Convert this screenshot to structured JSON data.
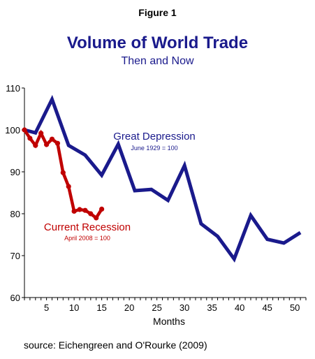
{
  "figure_label": "Figure 1",
  "source_note": "source: Eichengreen and O'Rourke (2009)",
  "colors": {
    "great_depression": "#1a1a8c",
    "current_recession": "#c00000",
    "axis": "#000000"
  },
  "chart_data": {
    "type": "line",
    "title": "Volume of World Trade",
    "subtitle": "Then and Now",
    "xlabel": "Months",
    "ylabel": "",
    "xlim": [
      1,
      52
    ],
    "ylim": [
      60,
      110
    ],
    "xticks": [
      5,
      10,
      15,
      20,
      25,
      30,
      35,
      40,
      45,
      50
    ],
    "yticks": [
      60,
      70,
      80,
      90,
      100,
      110
    ],
    "grid": false,
    "legend": "none",
    "series": [
      {
        "key": "great_depression",
        "annotation": "Great Depression",
        "annotation_sub": "June 1929 = 100",
        "x": [
          1,
          3,
          6,
          9,
          12,
          15,
          18,
          21,
          24,
          27,
          30,
          33,
          36,
          39,
          42,
          45,
          48,
          51
        ],
        "y": [
          100,
          99.3,
          107.3,
          96.3,
          94,
          89.2,
          96.6,
          85.5,
          85.8,
          83.2,
          91.5,
          77.6,
          74.6,
          69.2,
          79.6,
          73.9,
          73,
          75.5
        ],
        "markers": false
      },
      {
        "key": "current_recession",
        "annotation": "Current Recession",
        "annotation_sub": "April 2008 = 100",
        "x": [
          1,
          2,
          3,
          4,
          5,
          6,
          7,
          8,
          9,
          10,
          11,
          12,
          13,
          14,
          15
        ],
        "y": [
          100,
          98,
          96.3,
          99.2,
          96.5,
          97.8,
          96.8,
          89.8,
          86.5,
          80.6,
          81,
          80.8,
          80,
          79,
          81.1
        ],
        "markers": true
      }
    ]
  }
}
